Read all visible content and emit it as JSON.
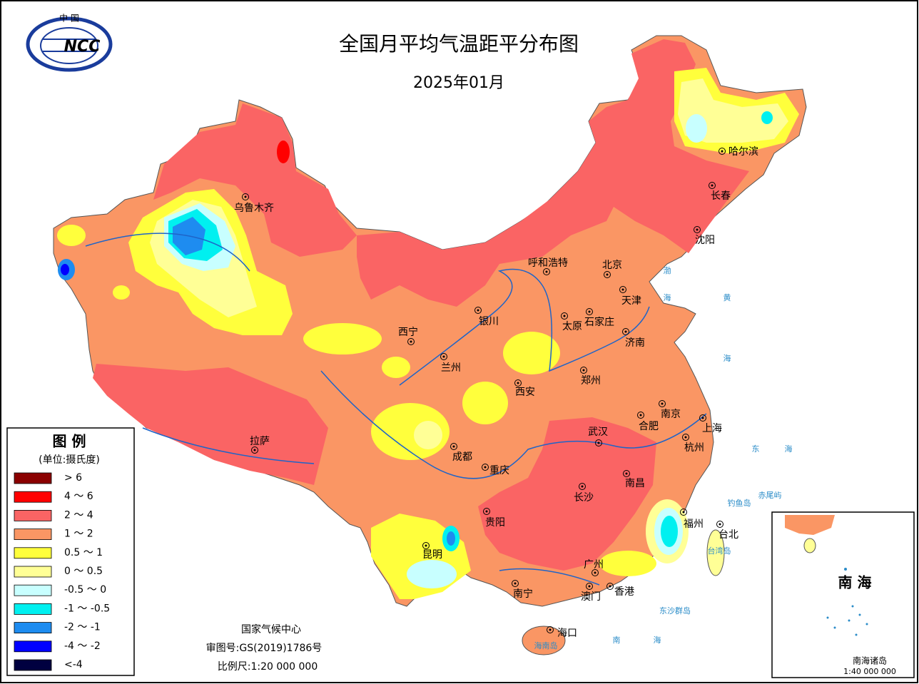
{
  "header": {
    "title": "全国月平均气温距平分布图",
    "subtitle": "2025年01月"
  },
  "logo": {
    "top": "中  国",
    "text": "NCC"
  },
  "legend": {
    "title": "图  例",
    "unit": "(单位:摄氏度)",
    "items": [
      {
        "label": "> 6",
        "color": "#8b0000"
      },
      {
        "label": "4 ～ 6",
        "color": "#ff0000"
      },
      {
        "label": "2 ～ 4",
        "color": "#fa6464"
      },
      {
        "label": "1 ～ 2",
        "color": "#fa9664"
      },
      {
        "label": "0.5 ～ 1",
        "color": "#ffff3c"
      },
      {
        "label": "0 ～ 0.5",
        "color": "#ffff96"
      },
      {
        "label": "-0.5 ～ 0",
        "color": "#c8ffff"
      },
      {
        "label": "-1 ～ -0.5",
        "color": "#00f0f0"
      },
      {
        "label": "-2 ～ -1",
        "color": "#1e8cf0"
      },
      {
        "label": "-4 ～ -2",
        "color": "#0000ff"
      },
      {
        "label": "<-4",
        "color": "#000040"
      }
    ]
  },
  "cities": [
    "哈尔滨",
    "长春",
    "沈阳",
    "呼和浩特",
    "北京",
    "天津",
    "石家庄",
    "太原",
    "济南",
    "银川",
    "西宁",
    "兰州",
    "郑州",
    "西安",
    "南京",
    "合肥",
    "上海",
    "杭州",
    "武汉",
    "成都",
    "重庆",
    "南昌",
    "长沙",
    "福州",
    "台北",
    "贵阳",
    "昆明",
    "广州",
    "南宁",
    "澳门",
    "香港",
    "海口",
    "拉萨",
    "乌鲁木齐"
  ],
  "places": [
    "渤",
    "海",
    "黄",
    "海",
    "东",
    "海",
    "南",
    "海",
    "钓鱼岛",
    "赤尾屿",
    "台湾岛",
    "东沙群岛",
    "海南岛"
  ],
  "inset": {
    "sea": "南 海",
    "title": "南海诸岛",
    "scale": "1:40 000 000"
  },
  "footer": {
    "org": "国家气候中心",
    "approval": "审图号:GS(2019)1786号",
    "scale": "比例尺:1:20 000 000"
  }
}
